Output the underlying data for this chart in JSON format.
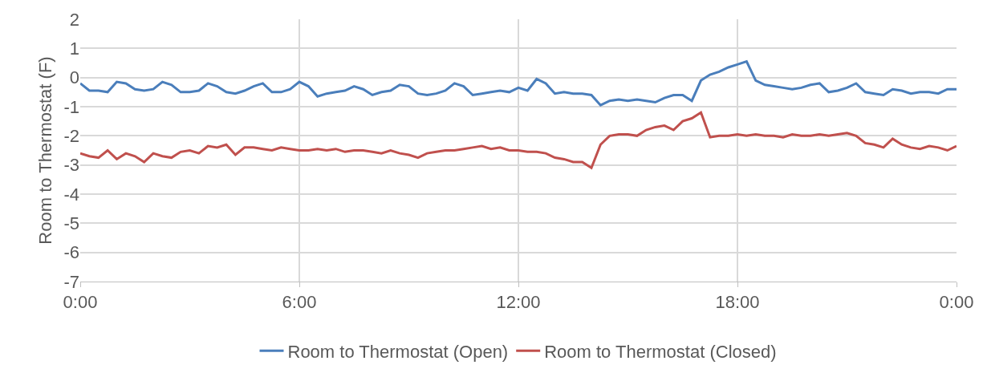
{
  "chart_data": {
    "type": "line",
    "ylabel": "Room to Thermostat (F)",
    "x": [
      0,
      0.25,
      0.5,
      0.75,
      1,
      1.25,
      1.5,
      1.75,
      2,
      2.25,
      2.5,
      2.75,
      3,
      3.25,
      3.5,
      3.75,
      4,
      4.25,
      4.5,
      4.75,
      5,
      5.25,
      5.5,
      5.75,
      6,
      6.25,
      6.5,
      6.75,
      7,
      7.25,
      7.5,
      7.75,
      8,
      8.25,
      8.5,
      8.75,
      9,
      9.25,
      9.5,
      9.75,
      10,
      10.25,
      10.5,
      10.75,
      11,
      11.25,
      11.5,
      11.75,
      12,
      12.25,
      12.5,
      12.75,
      13,
      13.25,
      13.5,
      13.75,
      14,
      14.25,
      14.5,
      14.75,
      15,
      15.25,
      15.5,
      15.75,
      16,
      16.25,
      16.5,
      16.75,
      17,
      17.25,
      17.5,
      17.75,
      18,
      18.25,
      18.5,
      18.75,
      19,
      19.25,
      19.5,
      19.75,
      20,
      20.25,
      20.5,
      20.75,
      21,
      21.25,
      21.5,
      21.75,
      22,
      22.25,
      22.5,
      22.75,
      23,
      23.25,
      23.5,
      23.75,
      24
    ],
    "series": [
      {
        "name": "Room to Thermostat (Open)",
        "color": "#4a7ebb",
        "values": [
          -0.2,
          -0.45,
          -0.45,
          -0.5,
          -0.15,
          -0.2,
          -0.4,
          -0.45,
          -0.4,
          -0.15,
          -0.25,
          -0.5,
          -0.5,
          -0.45,
          -0.2,
          -0.3,
          -0.5,
          -0.55,
          -0.45,
          -0.3,
          -0.2,
          -0.5,
          -0.5,
          -0.4,
          -0.15,
          -0.3,
          -0.65,
          -0.55,
          -0.5,
          -0.45,
          -0.3,
          -0.4,
          -0.6,
          -0.5,
          -0.45,
          -0.25,
          -0.3,
          -0.55,
          -0.6,
          -0.55,
          -0.45,
          -0.2,
          -0.3,
          -0.6,
          -0.55,
          -0.5,
          -0.45,
          -0.5,
          -0.35,
          -0.45,
          -0.05,
          -0.2,
          -0.55,
          -0.5,
          -0.55,
          -0.55,
          -0.6,
          -0.95,
          -0.8,
          -0.75,
          -0.8,
          -0.75,
          -0.8,
          -0.85,
          -0.7,
          -0.6,
          -0.6,
          -0.8,
          -0.1,
          0.1,
          0.2,
          0.35,
          0.45,
          0.55,
          -0.1,
          -0.25,
          -0.3,
          -0.35,
          -0.4,
          -0.35,
          -0.25,
          -0.2,
          -0.5,
          -0.45,
          -0.35,
          -0.2,
          -0.5,
          -0.55,
          -0.6,
          -0.4,
          -0.45,
          -0.55,
          -0.5,
          -0.5,
          -0.55,
          -0.4,
          -0.4
        ]
      },
      {
        "name": "Room to Thermostat (Closed)",
        "color": "#c0504d",
        "values": [
          -2.6,
          -2.7,
          -2.75,
          -2.5,
          -2.8,
          -2.6,
          -2.7,
          -2.9,
          -2.6,
          -2.7,
          -2.75,
          -2.55,
          -2.5,
          -2.6,
          -2.35,
          -2.4,
          -2.3,
          -2.65,
          -2.4,
          -2.4,
          -2.45,
          -2.5,
          -2.4,
          -2.45,
          -2.5,
          -2.5,
          -2.45,
          -2.5,
          -2.45,
          -2.55,
          -2.5,
          -2.5,
          -2.55,
          -2.6,
          -2.5,
          -2.6,
          -2.65,
          -2.75,
          -2.6,
          -2.55,
          -2.5,
          -2.5,
          -2.45,
          -2.4,
          -2.35,
          -2.45,
          -2.4,
          -2.5,
          -2.5,
          -2.55,
          -2.55,
          -2.6,
          -2.75,
          -2.8,
          -2.9,
          -2.9,
          -3.1,
          -2.3,
          -2.0,
          -1.95,
          -1.95,
          -2.0,
          -1.8,
          -1.7,
          -1.65,
          -1.8,
          -1.5,
          -1.4,
          -1.2,
          -2.05,
          -2.0,
          -2.0,
          -1.95,
          -2.0,
          -1.95,
          -2.0,
          -2.0,
          -2.05,
          -1.95,
          -2.0,
          -2.0,
          -1.95,
          -2.0,
          -1.95,
          -1.9,
          -2.0,
          -2.25,
          -2.3,
          -2.4,
          -2.1,
          -2.3,
          -2.4,
          -2.45,
          -2.35,
          -2.4,
          -2.5,
          -2.35
        ]
      }
    ],
    "xlim": [
      0,
      24
    ],
    "xticks": [
      {
        "value": 0,
        "label": "0:00"
      },
      {
        "value": 6,
        "label": "6:00"
      },
      {
        "value": 12,
        "label": "12:00"
      },
      {
        "value": 18,
        "label": "18:00"
      },
      {
        "value": 24,
        "label": "0:00"
      }
    ],
    "ylim": [
      -7,
      2
    ],
    "yticks": [
      -7,
      -6,
      -5,
      -4,
      -3,
      -2,
      -1,
      0,
      1,
      2
    ],
    "grid": true,
    "legend": "bottom",
    "marker": "none",
    "line_style": "solid"
  }
}
